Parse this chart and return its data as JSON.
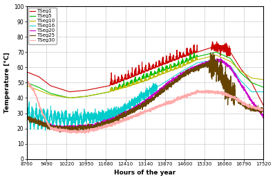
{
  "title": "",
  "xlabel": "Hours of the year",
  "ylabel": "Temperature [°C]",
  "xlim": [
    8760,
    17520
  ],
  "ylim": [
    0,
    100
  ],
  "xticks": [
    8760,
    9490,
    10220,
    10950,
    11680,
    12410,
    13140,
    13870,
    14600,
    15330,
    16060,
    16790,
    17520
  ],
  "yticks": [
    0,
    10,
    20,
    30,
    40,
    50,
    60,
    70,
    80,
    90,
    100
  ],
  "legend": [
    "TSeg1",
    "TSeg5",
    "TSeg10",
    "TSeg16",
    "TSeg20",
    "TSeg25",
    "TSeg30"
  ],
  "colors": [
    "#cc0000",
    "#00bb00",
    "#bbbb00",
    "#00cccc",
    "#cc00cc",
    "#664400",
    "#ffaaaa"
  ],
  "background": "#ffffff",
  "grid_color": "#cccccc"
}
